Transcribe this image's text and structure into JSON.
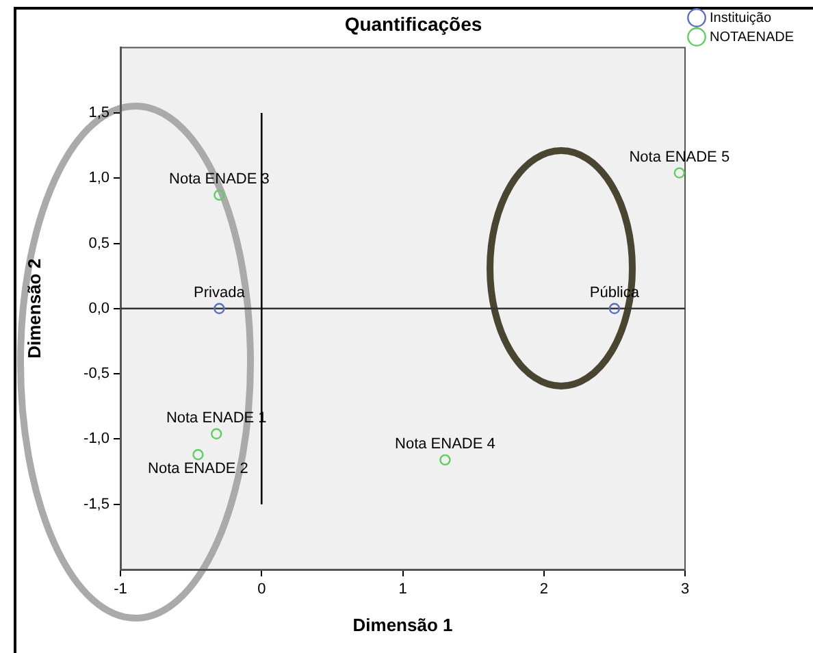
{
  "chart_data": {
    "type": "scatter",
    "title": "Quantificações",
    "xlabel": "Dimensão 1",
    "ylabel": "Dimensão 2",
    "series": [
      {
        "name": "Instituição",
        "color": "#5b6fbf",
        "x": [
          -0.3,
          2.5
        ],
        "values": [
          0,
          0
        ]
      },
      {
        "name": "NOTAENADE",
        "color": "#5fcf5f",
        "x": [
          -0.32,
          -0.45,
          -0.3,
          1.3,
          2.96
        ],
        "values": [
          -0.96,
          -1.12,
          0.87,
          -1.16,
          1.04
        ]
      }
    ],
    "annotations": [
      {
        "text": "Privada",
        "x": -0.3,
        "y": 0
      },
      {
        "text": "Pública",
        "x": 2.5,
        "y": 0
      },
      {
        "text": "Nota ENADE 1",
        "x": -0.32,
        "y": -0.96
      },
      {
        "text": "Nota ENADE 2",
        "x": -0.45,
        "y": -1.12
      },
      {
        "text": "Nota ENADE 3",
        "x": -0.3,
        "y": 0.87
      },
      {
        "text": "Nota ENADE 4",
        "x": 1.3,
        "y": -1.16
      },
      {
        "text": "Nota ENADE 5",
        "x": 2.96,
        "y": 1.04
      }
    ],
    "ref_lines": [
      {
        "axis": "y",
        "value": 0
      },
      {
        "axis": "x",
        "value": 0
      }
    ],
    "xlim": [
      -1,
      3
    ],
    "xticks": [
      -1,
      0,
      1,
      2,
      3
    ],
    "ylim": [
      -2,
      2
    ],
    "yticks": [
      {
        "value": -1.5,
        "label": "-1,5"
      },
      {
        "value": -1,
        "label": "-1,0"
      },
      {
        "value": -0.5,
        "label": "-0,5"
      },
      {
        "value": 0,
        "label": "0,0"
      },
      {
        "value": 0.5,
        "label": "0,5"
      },
      {
        "value": 1,
        "label": "1,0"
      },
      {
        "value": 1.5,
        "label": "1,5"
      }
    ],
    "marker": "circle",
    "legend": "top right",
    "grid": false
  }
}
